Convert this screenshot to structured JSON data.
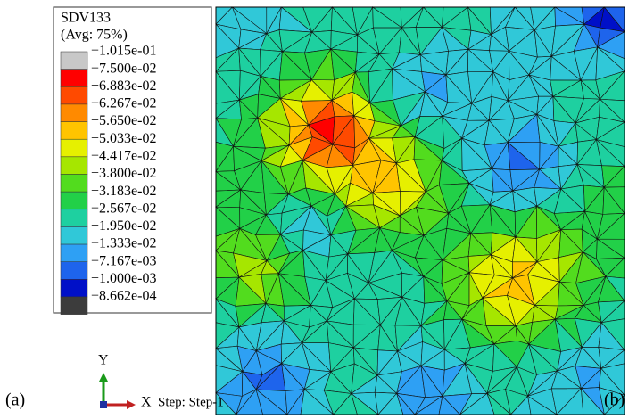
{
  "legend": {
    "title": "SDV133",
    "subtitle": "(Avg: 75%)",
    "labels": [
      "+1.015e-01",
      "+7.500e-02",
      "+6.883e-02",
      "+6.267e-02",
      "+5.650e-02",
      "+5.033e-02",
      "+4.417e-02",
      "+3.800e-02",
      "+3.183e-02",
      "+2.567e-02",
      "+1.950e-02",
      "+1.333e-02",
      "+7.167e-03",
      "+1.000e-03",
      "+8.662e-04"
    ],
    "colors": [
      "#c8c8c8",
      "#ff0000",
      "#ff4a00",
      "#ff8a00",
      "#ffc400",
      "#e6f000",
      "#a6e600",
      "#52dc1e",
      "#22d048",
      "#1ed0a0",
      "#30c8d8",
      "#2ea0f4",
      "#1e64ec",
      "#0010c8",
      "#3c3c3c"
    ]
  },
  "triad": {
    "y_label": "Y",
    "x_label": "X"
  },
  "step": "Step: Step-1",
  "panel_labels": [
    "(a)",
    "(b)"
  ]
}
